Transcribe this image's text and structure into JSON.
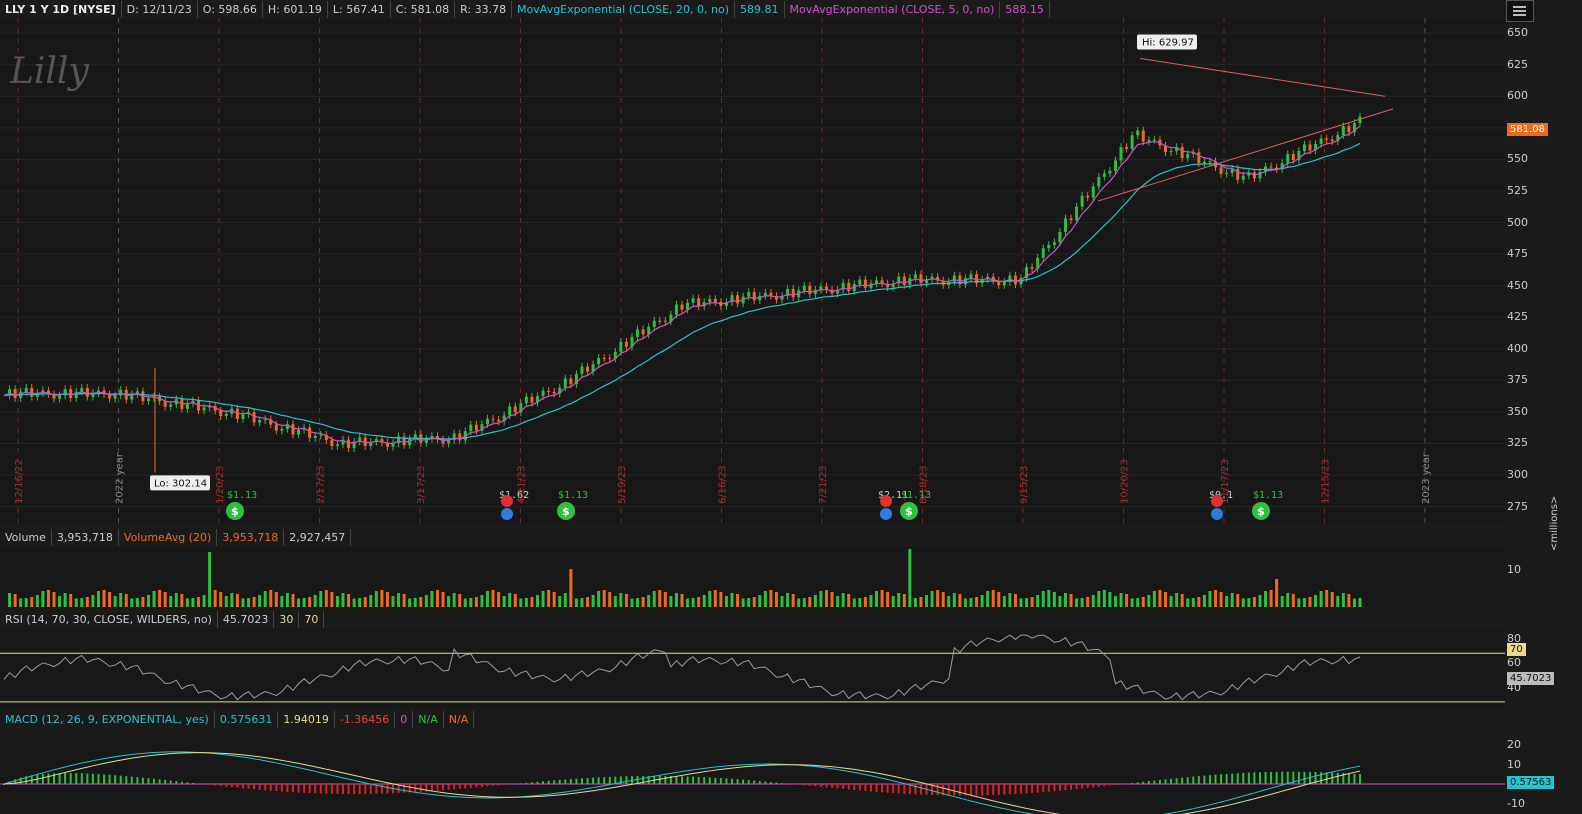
{
  "header": {
    "symbol": "LLY 1 Y 1D [NYSE]",
    "date": "D: 12/11/23",
    "open": "O: 598.66",
    "high": "H: 601.19",
    "low": "L: 567.41",
    "close": "C: 581.08",
    "range": "R: 33.78",
    "ema20_label": "MovAvgExponential (CLOSE, 20, 0, no)",
    "ema20_value": "589.81",
    "ema5_label": "MovAvgExponential (CLOSE, 5, 0, no)",
    "ema5_value": "588.15"
  },
  "colors": {
    "up": "#2fbf3f",
    "down": "#f06a1e",
    "ema20": "#20c6d0",
    "ema5": "#d050d0",
    "trend": "#e06060",
    "bg": "#181818"
  },
  "price_axis": {
    "ticks": [
      "650",
      "625",
      "600",
      "575",
      "550",
      "525",
      "500",
      "475",
      "450",
      "425",
      "400",
      "375",
      "350",
      "325",
      "300",
      "275"
    ],
    "last_price": "581.08"
  },
  "annotations": {
    "hi": "Hi: 629.97",
    "lo": "Lo: 302.14",
    "watermark": "Lilly"
  },
  "date_labels": [
    "12/16/22",
    "2022 year",
    "1/20/23",
    "2/17/23",
    "3/17/23",
    "4/21/23",
    "5/19/23",
    "6/16/23",
    "7/21/23",
    "8/18/23",
    "9/15/23",
    "10/20/23",
    "11/17/23",
    "12/15/23",
    "2023 year"
  ],
  "events": [
    {
      "type": "dividend",
      "label": "$1.13"
    },
    {
      "type": "earnings",
      "label": "$1.62"
    },
    {
      "type": "dividend",
      "label": "$1.13"
    },
    {
      "type": "earnings",
      "label": "$2.11"
    },
    {
      "type": "dividend",
      "label": "$1.13"
    },
    {
      "type": "earnings",
      "label": "$0.1"
    },
    {
      "type": "dividend",
      "label": "$1.13"
    }
  ],
  "volume": {
    "label": "Volume",
    "value": "3,953,718",
    "avg_label": "VolumeAvg (20)",
    "avg_value": "3,953,718",
    "extra_value": "2,927,457",
    "ticks": [
      "10"
    ],
    "units": "<millions>"
  },
  "rsi": {
    "label": "RSI (14, 70, 30, CLOSE, WILDERS, no)",
    "value": "45.7023",
    "os": "30",
    "ob": "70",
    "ticks": [
      "80",
      "60",
      "40"
    ],
    "ob_tag": "70",
    "value_tag": "45.7023"
  },
  "macd": {
    "label": "MACD (12, 26, 9, EXPONENTIAL, yes)",
    "value": "0.575631",
    "avg": "1.94019",
    "diff": "-1.36456",
    "zero": "0",
    "na1": "N/A",
    "na2": "N/A",
    "ticks": [
      "20",
      "10",
      "-10"
    ],
    "value_tag": "0.57563"
  },
  "chart_data": {
    "type": "line",
    "title": "LLY 1 Y 1D [NYSE]",
    "xlabel": "",
    "ylabel": "",
    "ylim": [
      262,
      662
    ],
    "x": [
      "12/16/22",
      "1/20/23",
      "2/17/23",
      "3/17/23",
      "4/21/23",
      "5/19/23",
      "6/16/23",
      "7/21/23",
      "8/18/23",
      "9/15/23",
      "10/20/23",
      "11/17/23",
      "12/11/23"
    ],
    "series": [
      {
        "values": [
          365,
          365,
          350,
          325,
          330,
          375,
          435,
          445,
          455,
          455,
          570,
          535,
          580
        ]
      },
      {
        "values": [
          366,
          364,
          352,
          328,
          332,
          372,
          430,
          440,
          452,
          452,
          560,
          540,
          590
        ]
      },
      {
        "values": [
          365,
          364,
          351,
          326,
          331,
          374,
          433,
          444,
          454,
          455,
          565,
          538,
          588
        ]
      }
    ],
    "hi": 629.97,
    "lo": 302.14
  }
}
